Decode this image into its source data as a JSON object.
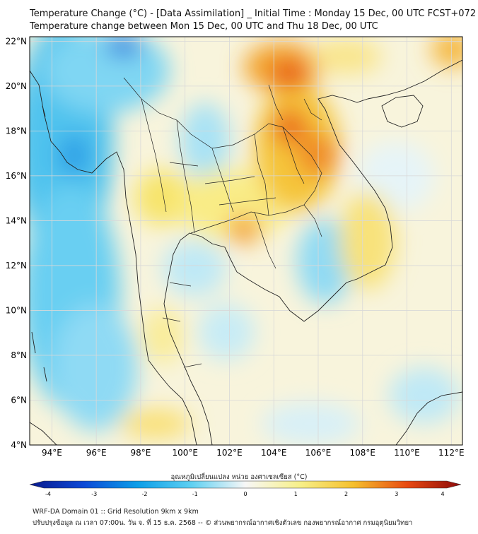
{
  "title_line1": "Temperature Change (°C) - [Data Assimilation] _ Initial Time : Monday 15 Dec, 00 UTC FCST+072",
  "title_line2": "Temperature change between Mon 15 Dec, 00 UTC and Thu 18 Dec, 00 UTC",
  "lat_labels": [
    "22°N",
    "20°N",
    "18°N",
    "16°N",
    "14°N",
    "12°N",
    "10°N",
    "8°N",
    "6°N",
    "4°N"
  ],
  "lon_labels": [
    "94°E",
    "96°E",
    "98°E",
    "100°E",
    "102°E",
    "104°E",
    "106°E",
    "108°E",
    "110°E",
    "112°E"
  ],
  "colorbar": {
    "title": "อุณหภูมิเปลี่ยนแปลง หน่วย องศาเซลเซียส (°C)",
    "ticks": [
      "-4",
      "-3",
      "-2",
      "-1",
      "0",
      "1",
      "2",
      "3",
      "4"
    ],
    "colors": {
      "neg4": "#0a1a8c",
      "neg3": "#0d49d6",
      "neg2": "#0d9ee8",
      "neg1": "#5ed0f2",
      "zero": "#f7f7f7",
      "pos1": "#f7f08a",
      "pos2": "#f5c02e",
      "pos3": "#e84a12",
      "pos4": "#8c0a0a"
    }
  },
  "footer_line1": "WRF-DA Domain 01 :: Grid Resolution 9km x 9km",
  "footer_line2": "ปรับปรุงข้อมูล ณ เวลา 07:00น. วัน จ. ที่ 15 ธ.ค. 2568 -- © ส่วนพยากรณ์อากาศเชิงตัวเลข กองพยากรณ์อากาศ กรมอุตุนิยมวิทยา"
}
